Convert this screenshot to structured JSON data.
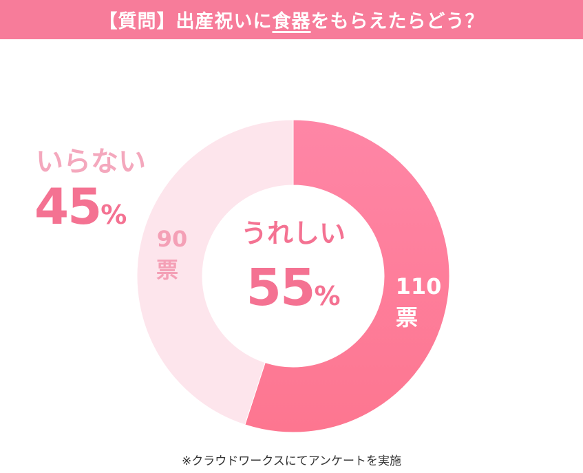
{
  "header": {
    "title_before": "【質問】出産祝いに",
    "title_underlined": "食器",
    "title_after": "をもらえたらどう？"
  },
  "footnote": "※クラウドワークスにてアンケートを実施",
  "colors": {
    "header_bg": "#f77c9a",
    "yes_slice": "#fe7d9b",
    "no_slice": "#fde5ec",
    "pct_text": "#f47292",
    "no_label_text": "#f4a8bd",
    "vote_text_on_light": "#f4a0b6"
  },
  "labels": {
    "yes_label": "うれしい",
    "yes_pct_num": "55",
    "yes_pct_sym": "%",
    "no_label": "いらない",
    "no_pct_num": "45",
    "no_pct_sym": "%",
    "yes_votes_num": "110",
    "yes_votes_unit": "票",
    "no_votes_num": "90",
    "no_votes_unit": "票"
  },
  "chart_data": {
    "type": "pie",
    "title": "【質問】出産祝いに食器をもらえたらどう？",
    "categories": [
      "うれしい",
      "いらない"
    ],
    "values": [
      110,
      90
    ],
    "percentages": [
      55,
      45
    ],
    "unit": "票",
    "colors": [
      "#fe7d9b",
      "#fde5ec"
    ],
    "donut": true
  }
}
